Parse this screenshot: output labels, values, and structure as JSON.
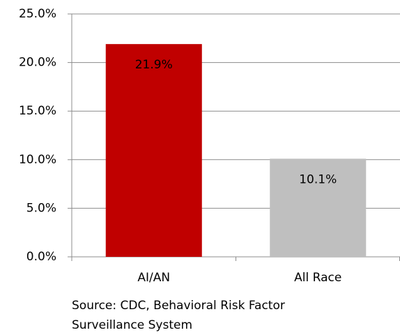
{
  "chart_data": {
    "type": "bar",
    "categories": [
      "AI/AN",
      "All Race"
    ],
    "values": [
      21.9,
      10.1
    ],
    "value_labels": [
      "21.9%",
      "10.1%"
    ],
    "colors": [
      "#c00000",
      "#bfbfbf"
    ],
    "ylim": [
      0,
      25
    ],
    "yticks": [
      {
        "value": 0,
        "label": "0.0%"
      },
      {
        "value": 5,
        "label": "5.0%"
      },
      {
        "value": 10,
        "label": "10.0%"
      },
      {
        "value": 15,
        "label": "15.0%"
      },
      {
        "value": 20,
        "label": "20.0%"
      },
      {
        "value": 25,
        "label": "25.0%"
      }
    ],
    "grid": true,
    "source": [
      "Source: CDC, Behavioral Risk Factor",
      "Surveillance System"
    ]
  }
}
